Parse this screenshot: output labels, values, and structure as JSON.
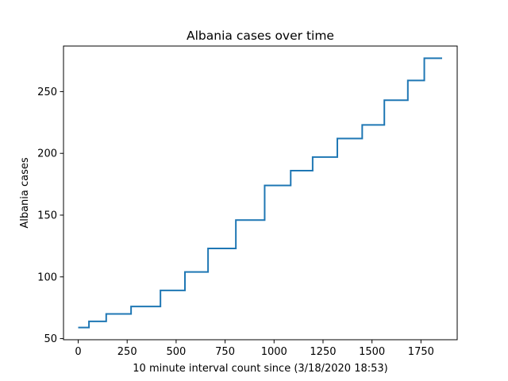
{
  "chart_data": {
    "type": "line",
    "title": "Albania cases over time",
    "xlabel": "10 minute interval count since (3/18/2020 18:53)",
    "ylabel": "Albania cases",
    "xlim": [
      -75,
      1935
    ],
    "ylim": [
      49.1,
      286.9
    ],
    "xticks": [
      0,
      250,
      500,
      750,
      1000,
      1250,
      1500,
      1750
    ],
    "yticks": [
      50,
      100,
      150,
      200,
      250
    ],
    "grid": false,
    "line_style": "step",
    "series": [
      {
        "color": "#1f77b4",
        "points": [
          [
            0,
            59
          ],
          [
            55,
            59
          ],
          [
            55,
            64
          ],
          [
            143,
            64
          ],
          [
            143,
            70
          ],
          [
            270,
            70
          ],
          [
            270,
            76
          ],
          [
            420,
            76
          ],
          [
            420,
            89
          ],
          [
            545,
            89
          ],
          [
            545,
            104
          ],
          [
            663,
            104
          ],
          [
            663,
            123
          ],
          [
            805,
            123
          ],
          [
            805,
            146
          ],
          [
            952,
            146
          ],
          [
            952,
            174
          ],
          [
            1085,
            174
          ],
          [
            1085,
            186
          ],
          [
            1197,
            186
          ],
          [
            1197,
            197
          ],
          [
            1323,
            197
          ],
          [
            1323,
            212
          ],
          [
            1450,
            212
          ],
          [
            1450,
            223
          ],
          [
            1563,
            223
          ],
          [
            1563,
            243
          ],
          [
            1683,
            243
          ],
          [
            1683,
            259
          ],
          [
            1767,
            259
          ],
          [
            1767,
            277
          ],
          [
            1858,
            277
          ]
        ]
      }
    ]
  }
}
